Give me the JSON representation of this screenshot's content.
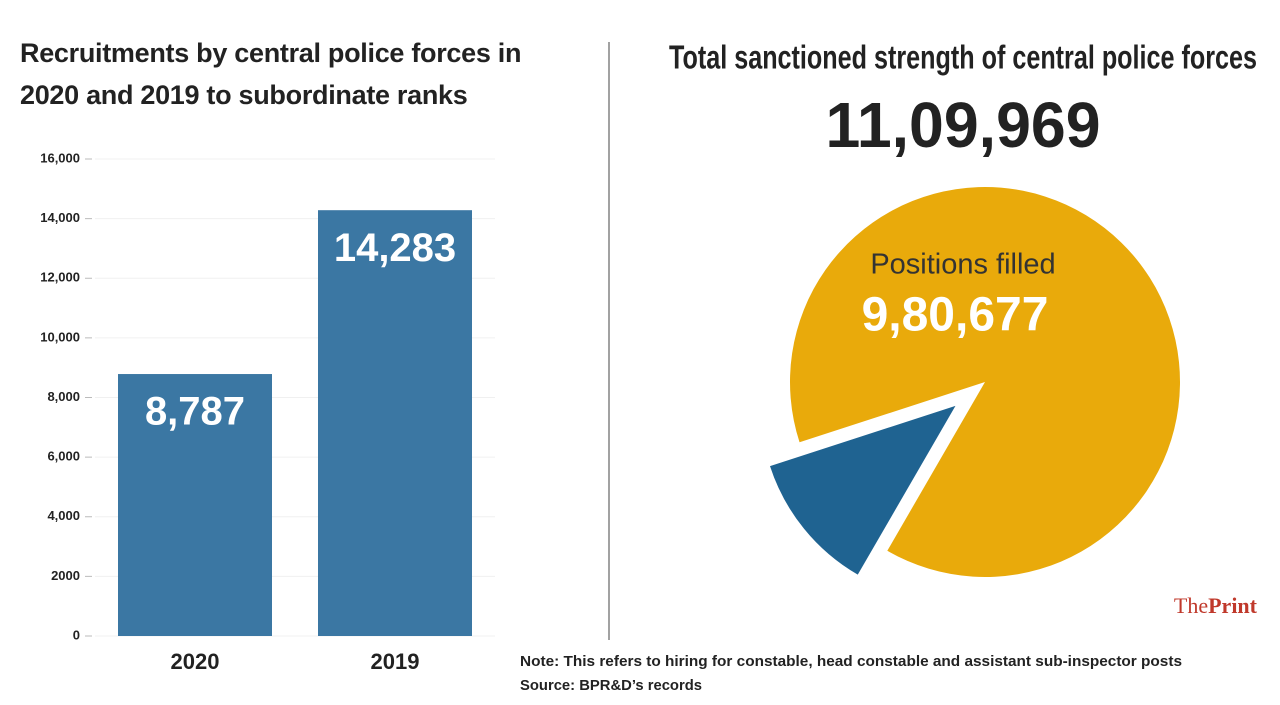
{
  "chart_data": [
    {
      "type": "bar",
      "title": "Recruitments by central police forces in 2020 and 2019 to subordinate ranks",
      "categories": [
        "2020",
        "2019"
      ],
      "values": [
        8787,
        14283
      ],
      "value_labels": [
        "8,787",
        "14,283"
      ],
      "color": "#3b77a3",
      "ylim": [
        0,
        16000
      ],
      "yticks": [
        0,
        2000,
        {
          "value": 4000,
          "label": "4,000"
        },
        {
          "value": 6000,
          "label": "6,000"
        },
        {
          "value": 8000,
          "label": "8,000"
        },
        {
          "value": 10000,
          "label": "10,000"
        },
        {
          "value": 12000,
          "label": "12,000"
        },
        {
          "value": 14000,
          "label": "14,000"
        },
        {
          "value": 16000,
          "label": "16,000"
        }
      ],
      "grid": true
    },
    {
      "type": "pie",
      "title": "Total sanctioned strength of central police forces",
      "subtitle": "11,09,969",
      "categories": [
        "Positions filled",
        null
      ],
      "values": [
        980677,
        129292
      ],
      "value_labels": [
        "9,80,677",
        null
      ],
      "colors": [
        "#e9aa0b",
        "#1f6391"
      ]
    }
  ],
  "note": "Note: This refers to hiring for constable, head constable and assistant sub-inspector posts",
  "source": "Source: BPR&D’s records",
  "brand": {
    "prefix": "The",
    "name": "Print"
  }
}
